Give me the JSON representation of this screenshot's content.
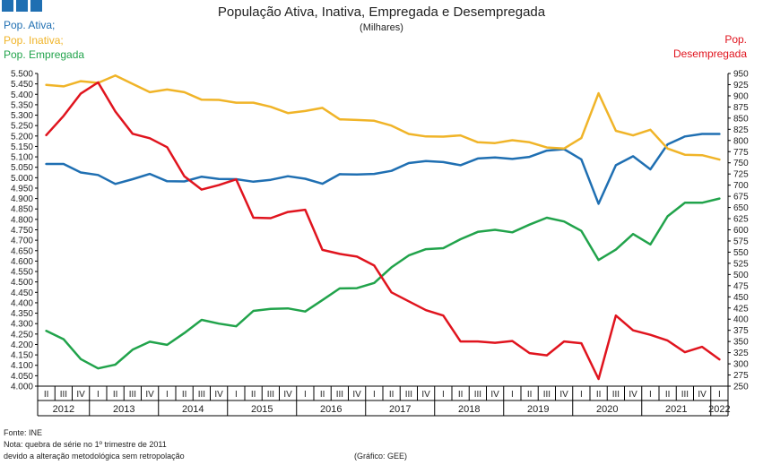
{
  "header": {
    "title": "População Ativa, Inativa, Empregada e Desempregada",
    "subtitle": "(Milhares)"
  },
  "legend": {
    "ativa": "Pop. Ativa;",
    "inativa": "Pop. Inativa;",
    "empregada": "Pop. Empregada",
    "desempregada_line1": "Pop.",
    "desempregada_line2": "Desempregada"
  },
  "footer": {
    "source": "Fonte: INE",
    "note_line1": "Nota: quebra de série no 1º trimestre de 2011",
    "note_line2": "devido a alteração metodológica sem retropolação",
    "credit": "(Gráfico: GEE)"
  },
  "colors": {
    "ativa": "#1f6fb2",
    "inativa": "#f0b428",
    "empregada": "#21a34b",
    "desempregada": "#e0141e"
  },
  "chart_data": {
    "type": "line",
    "title": "População Ativa, Inativa, Empregada e Desempregada",
    "subtitle": "(Milhares)",
    "ylim_left": [
      4000,
      5500
    ],
    "ylim_right": [
      250,
      950
    ],
    "yticks_left": [
      "4.000",
      "4.050",
      "4.100",
      "4.150",
      "4.200",
      "4.250",
      "4.300",
      "4.350",
      "4.400",
      "4.450",
      "4.500",
      "4.550",
      "4.600",
      "4.650",
      "4.700",
      "4.750",
      "4.800",
      "4.850",
      "4.900",
      "4.950",
      "5.000",
      "5.050",
      "5.100",
      "5.150",
      "5.200",
      "5.250",
      "5.300",
      "5.350",
      "5.400",
      "5.450",
      "5.500"
    ],
    "yticks_right": [
      "250",
      "275",
      "300",
      "325",
      "350",
      "375",
      "400",
      "425",
      "450",
      "475",
      "500",
      "525",
      "550",
      "575",
      "600",
      "625",
      "650",
      "675",
      "700",
      "725",
      "750",
      "775",
      "800",
      "825",
      "850",
      "875",
      "900",
      "925",
      "950"
    ],
    "quarters": [
      "II",
      "III",
      "IV",
      "I",
      "II",
      "III",
      "IV",
      "I",
      "II",
      "III",
      "IV",
      "I",
      "II",
      "III",
      "IV",
      "I",
      "II",
      "III",
      "IV",
      "I",
      "II",
      "III",
      "IV",
      "I",
      "II",
      "III",
      "IV",
      "I",
      "II",
      "III",
      "IV",
      "I",
      "II",
      "III",
      "IV",
      "I",
      "II",
      "III",
      "IV",
      "I"
    ],
    "years": [
      {
        "label": "2012",
        "start": 0,
        "end": 2
      },
      {
        "label": "2013",
        "start": 3,
        "end": 6
      },
      {
        "label": "2014",
        "start": 7,
        "end": 10
      },
      {
        "label": "2015",
        "start": 11,
        "end": 14
      },
      {
        "label": "2016",
        "start": 15,
        "end": 18
      },
      {
        "label": "2017",
        "start": 19,
        "end": 22
      },
      {
        "label": "2018",
        "start": 23,
        "end": 26
      },
      {
        "label": "2019",
        "start": 27,
        "end": 30
      },
      {
        "label": "2020",
        "start": 31,
        "end": 34
      },
      {
        "label": "2021",
        "start": 35,
        "end": 38
      },
      {
        "label": "2022",
        "start": 39,
        "end": 39
      }
    ],
    "grid": false,
    "series": [
      {
        "name": "Pop. Ativa;",
        "axis": "left",
        "color": "#1f6fb2",
        "values": [
          5066,
          5066,
          5025,
          5013,
          4970,
          4993,
          5018,
          4983,
          4982,
          5005,
          4994,
          4993,
          4981,
          4990,
          5007,
          4995,
          4971,
          5017,
          5015,
          5018,
          5033,
          5070,
          5080,
          5075,
          5060,
          5092,
          5097,
          5090,
          5100,
          5130,
          5137,
          5088,
          4875,
          5060,
          5103,
          5040,
          5160,
          5198,
          5210,
          5210
        ]
      },
      {
        "name": "Pop. Inativa;",
        "axis": "left",
        "color": "#f0b428",
        "values": [
          5445,
          5438,
          5463,
          5455,
          5490,
          5450,
          5410,
          5423,
          5410,
          5374,
          5373,
          5360,
          5360,
          5340,
          5310,
          5320,
          5335,
          5280,
          5277,
          5273,
          5250,
          5210,
          5198,
          5197,
          5203,
          5170,
          5166,
          5180,
          5170,
          5145,
          5140,
          5190,
          5405,
          5225,
          5203,
          5230,
          5140,
          5110,
          5108,
          5087
        ]
      },
      {
        "name": "Pop. Empregada",
        "axis": "left",
        "color": "#21a34b",
        "values": [
          4265,
          4225,
          4130,
          4085,
          4103,
          4175,
          4213,
          4198,
          4255,
          4318,
          4300,
          4287,
          4361,
          4371,
          4373,
          4358,
          4413,
          4469,
          4470,
          4495,
          4570,
          4627,
          4657,
          4662,
          4705,
          4740,
          4750,
          4738,
          4775,
          4808,
          4790,
          4745,
          4605,
          4655,
          4730,
          4680,
          4815,
          4880,
          4880,
          4900
        ]
      },
      {
        "name": "Pop. Desempregada",
        "axis": "right",
        "color": "#e0141e",
        "values": [
          812,
          855,
          905,
          930,
          865,
          815,
          805,
          785,
          720,
          690,
          700,
          713,
          627,
          626,
          640,
          645,
          555,
          546,
          540,
          520,
          460,
          440,
          420,
          408,
          350,
          350,
          347,
          351,
          324,
          319,
          350,
          346,
          266,
          408,
          375,
          365,
          352,
          326,
          338,
          310
        ]
      }
    ]
  }
}
